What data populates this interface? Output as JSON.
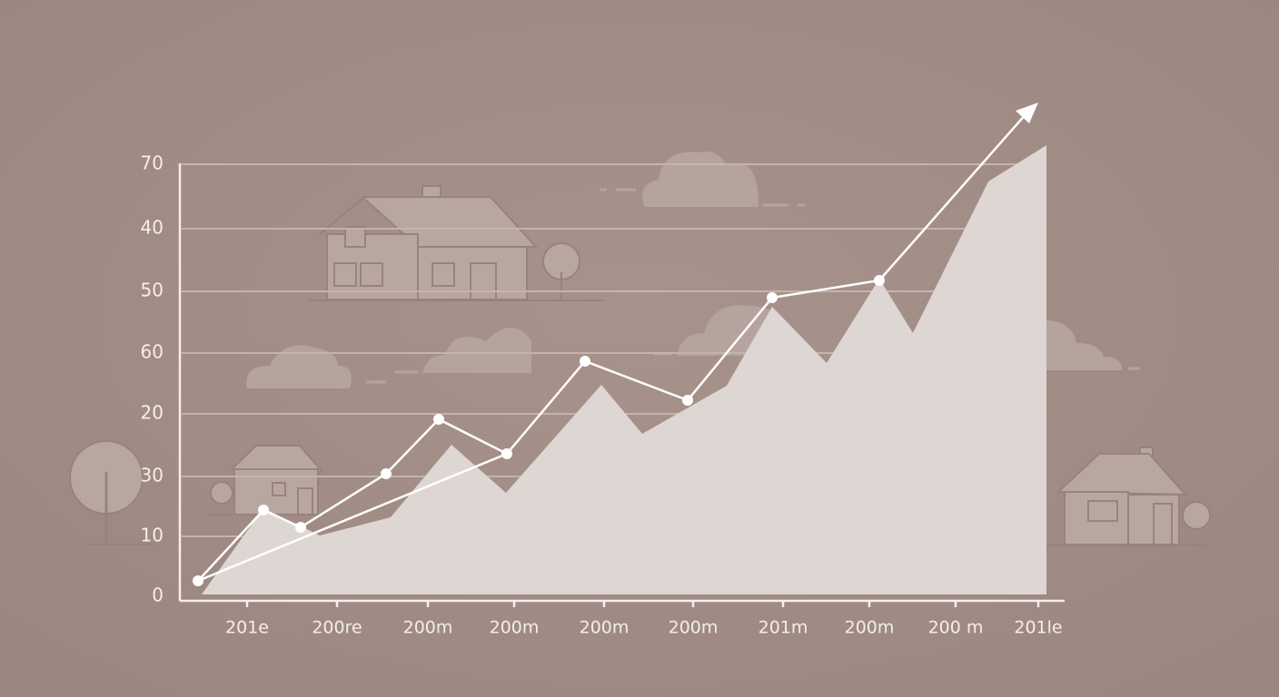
{
  "illustration": {
    "y_labels": [
      "70",
      "40",
      "50",
      "60",
      "20",
      "30",
      "10",
      "0"
    ],
    "x_labels": [
      "201e",
      "200re",
      "200m",
      "200m",
      "200m",
      "200m",
      "201m",
      "200m",
      "200 m",
      "201le"
    ]
  }
}
